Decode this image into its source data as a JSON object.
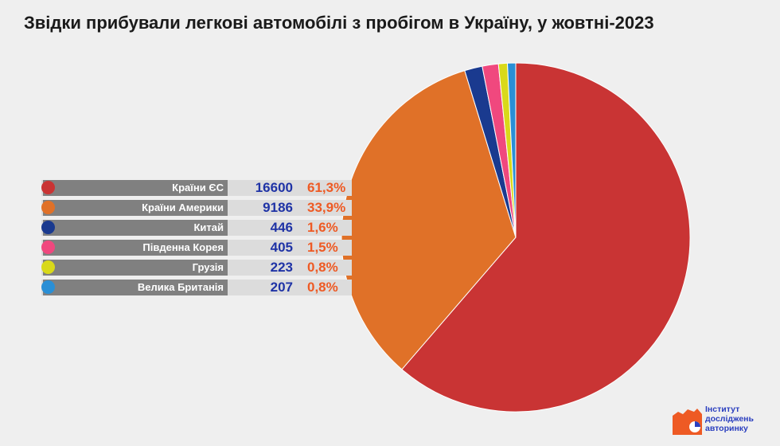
{
  "title": "Звідки прибували легкові автомобілі з пробігом в Україну, у жовтні-2023",
  "logo": {
    "line1": "Інститут",
    "line2": "досліджень",
    "line3": "авторинку"
  },
  "chart_data": {
    "type": "pie",
    "title": "Звідки прибували легкові автомобілі з пробігом в Україну, у жовтні-2023",
    "slices": [
      {
        "label": "Країни ЄС",
        "value": 16600,
        "percent": "61,3%",
        "color": "#c93434"
      },
      {
        "label": "Країни Америки",
        "value": 9186,
        "percent": "33,9%",
        "color": "#e07128"
      },
      {
        "label": "Китай",
        "value": 446,
        "percent": "1,6%",
        "color": "#1a3a8f"
      },
      {
        "label": "Південна Корея",
        "value": 405,
        "percent": "1,5%",
        "color": "#f0487e"
      },
      {
        "label": "Грузія",
        "value": 223,
        "percent": "0,8%",
        "color": "#d9d91a"
      },
      {
        "label": "Велика Британія",
        "value": 207,
        "percent": "0,8%",
        "color": "#2a8fd6"
      }
    ]
  }
}
